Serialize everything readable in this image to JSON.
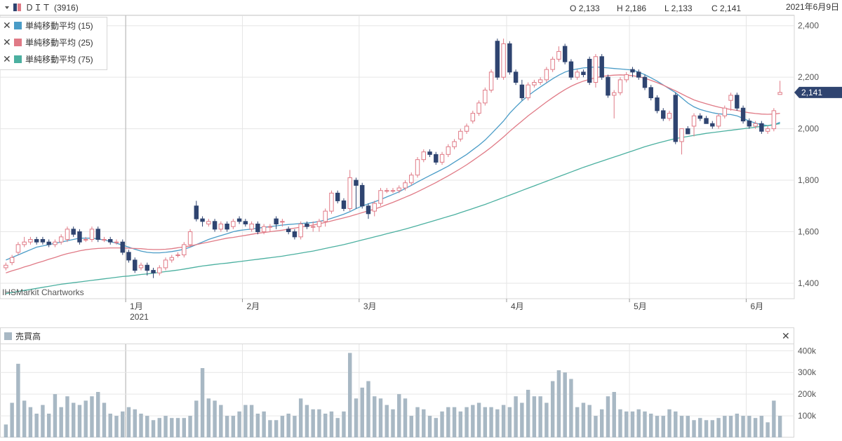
{
  "header": {
    "symbol_name": "ＤＩＴ",
    "code": "(3916)",
    "ohlc": [
      {
        "label": "O",
        "value": "2,133"
      },
      {
        "label": "H",
        "value": "2,186"
      },
      {
        "label": "L",
        "value": "2,133"
      },
      {
        "label": "C",
        "value": "2,141"
      }
    ],
    "date": "2021年6月9日"
  },
  "legend": [
    {
      "close": "✕",
      "label": "単純移動平均 (15)",
      "color": "#4a9cc7"
    },
    {
      "close": "✕",
      "label": "単純移動平均 (25)",
      "color": "#e07a86"
    },
    {
      "close": "✕",
      "label": "単純移動平均 (75)",
      "color": "#4bb0a0"
    }
  ],
  "watermark": "IHSMarkit Chartworks",
  "volume_panel": {
    "title": "売買高",
    "close": "✕"
  },
  "colors": {
    "up": "#e07a86",
    "down": "#2f4470",
    "volume": "#a8b8c4",
    "grid": "#e6e6e6"
  },
  "chart_data": [
    {
      "type": "candlestick",
      "yticks": [
        "2,400",
        "2,200",
        "2,000",
        "1,800",
        "1,600",
        "1,400"
      ],
      "ytick_values": [
        2400,
        2200,
        2000,
        1800,
        1600,
        1400
      ],
      "ylim": [
        1340,
        2440
      ],
      "last_price_label": "2,141",
      "last_price": 2141,
      "xticks": [
        {
          "label": "1月",
          "sub": "2021",
          "index": 20
        },
        {
          "label": "2月",
          "index": 39
        },
        {
          "label": "3月",
          "index": 58
        },
        {
          "label": "4月",
          "index": 82
        },
        {
          "label": "5月",
          "index": 102
        },
        {
          "label": "6月",
          "index": 121
        }
      ],
      "n": 127,
      "close": [
        1470,
        1500,
        1550,
        1560,
        1570,
        1560,
        1560,
        1550,
        1560,
        1580,
        1610,
        1590,
        1560,
        1570,
        1610,
        1570,
        1570,
        1560,
        1560,
        1520,
        1490,
        1450,
        1470,
        1450,
        1440,
        1460,
        1490,
        1500,
        1510,
        1550,
        1600,
        1650,
        1640,
        1640,
        1610,
        1630,
        1610,
        1640,
        1640,
        1630,
        1630,
        1600,
        1620,
        1620,
        1630,
        1640,
        1600,
        1580,
        1630,
        1620,
        1620,
        1640,
        1680,
        1750,
        1720,
        1690,
        1810,
        1780,
        1700,
        1670,
        1710,
        1760,
        1760,
        1760,
        1770,
        1790,
        1820,
        1880,
        1910,
        1900,
        1870,
        1900,
        1930,
        1950,
        1990,
        2010,
        2060,
        2100,
        2150,
        2220,
        2200,
        2330,
        2220,
        2180,
        2120,
        2170,
        2180,
        2190,
        2230,
        2270,
        2300,
        2260,
        2200,
        2220,
        2210,
        2180,
        2280,
        2200,
        2130,
        2140,
        2190,
        2210,
        2220,
        2200,
        2160,
        2120,
        2070,
        2040,
        2060,
        1950,
        2000,
        1980,
        2050,
        2040,
        2020,
        2010,
        2050,
        2080,
        2130,
        2080,
        2030,
        2010,
        2020,
        1990,
        2000,
        2070,
        2141
      ],
      "open": [
        1460,
        1480,
        1520,
        1550,
        1560,
        1570,
        1570,
        1560,
        1550,
        1560,
        1570,
        1610,
        1600,
        1570,
        1570,
        1610,
        1570,
        1570,
        1560,
        1560,
        1520,
        1490,
        1460,
        1470,
        1450,
        1440,
        1460,
        1490,
        1510,
        1510,
        1550,
        1700,
        1650,
        1630,
        1640,
        1610,
        1630,
        1620,
        1650,
        1640,
        1610,
        1630,
        1600,
        1620,
        1650,
        1640,
        1610,
        1600,
        1580,
        1630,
        1620,
        1620,
        1640,
        1680,
        1750,
        1720,
        1690,
        1800,
        1780,
        1700,
        1680,
        1710,
        1760,
        1760,
        1760,
        1770,
        1790,
        1820,
        1880,
        1910,
        1900,
        1870,
        1900,
        1930,
        1960,
        1990,
        2030,
        2060,
        2100,
        2150,
        2340,
        2200,
        2330,
        2220,
        2170,
        2120,
        2170,
        2180,
        2190,
        2230,
        2270,
        2320,
        2260,
        2200,
        2220,
        2270,
        2180,
        2280,
        2200,
        2130,
        2140,
        2190,
        2230,
        2220,
        2200,
        2160,
        2120,
        2070,
        2040,
        2130,
        1950,
        2000,
        2010,
        2050,
        2040,
        2020,
        2010,
        2050,
        2110,
        2130,
        2080,
        2030,
        2010,
        2020,
        1990,
        2000,
        2133
      ],
      "high": [
        1480,
        1510,
        1560,
        1580,
        1580,
        1580,
        1580,
        1570,
        1570,
        1590,
        1620,
        1620,
        1610,
        1580,
        1620,
        1620,
        1580,
        1580,
        1570,
        1570,
        1530,
        1500,
        1480,
        1480,
        1460,
        1470,
        1500,
        1510,
        1520,
        1560,
        1610,
        1720,
        1660,
        1650,
        1650,
        1640,
        1640,
        1650,
        1660,
        1650,
        1640,
        1640,
        1630,
        1630,
        1660,
        1650,
        1620,
        1610,
        1640,
        1640,
        1640,
        1650,
        1690,
        1760,
        1760,
        1730,
        1840,
        1810,
        1790,
        1710,
        1720,
        1770,
        1770,
        1770,
        1780,
        1800,
        1830,
        1890,
        1920,
        1920,
        1910,
        1910,
        1940,
        1960,
        2000,
        2020,
        2070,
        2110,
        2160,
        2230,
        2350,
        2350,
        2340,
        2230,
        2190,
        2180,
        2190,
        2200,
        2240,
        2280,
        2320,
        2330,
        2270,
        2230,
        2230,
        2280,
        2290,
        2290,
        2210,
        2150,
        2200,
        2220,
        2240,
        2230,
        2210,
        2170,
        2130,
        2080,
        2070,
        2140,
        2000,
        2010,
        2060,
        2060,
        2050,
        2030,
        2060,
        2090,
        2140,
        2140,
        2090,
        2040,
        2030,
        2030,
        2010,
        2080,
        2186
      ],
      "low": [
        1450,
        1470,
        1510,
        1540,
        1550,
        1550,
        1550,
        1540,
        1540,
        1550,
        1560,
        1580,
        1550,
        1560,
        1560,
        1560,
        1560,
        1550,
        1550,
        1510,
        1480,
        1440,
        1450,
        1430,
        1420,
        1430,
        1450,
        1480,
        1500,
        1500,
        1540,
        1640,
        1620,
        1620,
        1600,
        1600,
        1600,
        1610,
        1630,
        1620,
        1600,
        1590,
        1590,
        1600,
        1610,
        1620,
        1590,
        1570,
        1570,
        1610,
        1600,
        1600,
        1620,
        1670,
        1710,
        1680,
        1680,
        1690,
        1690,
        1650,
        1660,
        1700,
        1750,
        1750,
        1750,
        1760,
        1780,
        1810,
        1870,
        1890,
        1860,
        1860,
        1890,
        1920,
        1950,
        1980,
        2020,
        2050,
        2090,
        2140,
        2190,
        2190,
        2210,
        2170,
        2110,
        2110,
        2160,
        2170,
        2180,
        2220,
        2260,
        2250,
        2190,
        2190,
        2200,
        2170,
        2160,
        2190,
        2120,
        2040,
        2130,
        2180,
        2200,
        2190,
        2150,
        2110,
        2060,
        2030,
        2030,
        1940,
        1900,
        1980,
        1970,
        2030,
        2020,
        2000,
        2000,
        2040,
        2070,
        2070,
        2020,
        2000,
        2000,
        1980,
        1980,
        1990,
        2133
      ],
      "series": [
        {
          "name": "単純移動平均 (15)",
          "values": [
            1490,
            1500,
            1510,
            1520,
            1530,
            1540,
            1545,
            1550,
            1555,
            1560,
            1565,
            1570,
            1575,
            1575,
            1575,
            1572,
            1568,
            1562,
            1555,
            1548,
            1540,
            1532,
            1525,
            1520,
            1518,
            1518,
            1520,
            1523,
            1527,
            1532,
            1540,
            1550,
            1560,
            1570,
            1578,
            1585,
            1592,
            1600,
            1605,
            1608,
            1610,
            1614,
            1617,
            1620,
            1623,
            1626,
            1628,
            1630,
            1632,
            1634,
            1636,
            1640,
            1645,
            1652,
            1660,
            1668,
            1678,
            1690,
            1700,
            1708,
            1716,
            1725,
            1735,
            1745,
            1755,
            1768,
            1780,
            1793,
            1806,
            1818,
            1830,
            1842,
            1855,
            1870,
            1885,
            1900,
            1918,
            1936,
            1956,
            1980,
            2005,
            2030,
            2060,
            2085,
            2108,
            2128,
            2146,
            2162,
            2178,
            2194,
            2208,
            2220,
            2228,
            2232,
            2236,
            2238,
            2240,
            2238,
            2236,
            2234,
            2232,
            2230,
            2228,
            2220,
            2210,
            2198,
            2185,
            2170,
            2155,
            2140,
            2120,
            2100,
            2085,
            2075,
            2068,
            2062,
            2058,
            2056,
            2055,
            2050,
            2040,
            2030,
            2022,
            2016,
            2012,
            2015,
            2025
          ]
        },
        {
          "name": "単純移動平均 (25)",
          "values": [
            1440,
            1448,
            1455,
            1463,
            1470,
            1478,
            1485,
            1493,
            1500,
            1508,
            1515,
            1520,
            1526,
            1530,
            1533,
            1535,
            1536,
            1537,
            1537,
            1537,
            1536,
            1535,
            1534,
            1532,
            1531,
            1531,
            1532,
            1534,
            1538,
            1541,
            1545,
            1550,
            1555,
            1560,
            1565,
            1570,
            1575,
            1578,
            1582,
            1586,
            1590,
            1594,
            1597,
            1600,
            1603,
            1606,
            1610,
            1614,
            1618,
            1622,
            1626,
            1631,
            1636,
            1642,
            1648,
            1654,
            1660,
            1667,
            1674,
            1681,
            1688,
            1696,
            1705,
            1714,
            1724,
            1734,
            1744,
            1755,
            1767,
            1779,
            1791,
            1804,
            1817,
            1831,
            1845,
            1860,
            1876,
            1893,
            1910,
            1928,
            1948,
            1968,
            1990,
            2010,
            2030,
            2050,
            2068,
            2086,
            2104,
            2121,
            2137,
            2152,
            2165,
            2176,
            2185,
            2192,
            2198,
            2203,
            2206,
            2208,
            2209,
            2208,
            2206,
            2202,
            2196,
            2188,
            2179,
            2169,
            2158,
            2147,
            2135,
            2123,
            2112,
            2104,
            2097,
            2090,
            2084,
            2079,
            2075,
            2071,
            2066,
            2062,
            2059,
            2057,
            2056,
            2057,
            2060
          ]
        },
        {
          "name": "単純移動平均 (75)",
          "values": [
            1360,
            1364,
            1368,
            1372,
            1376,
            1380,
            1384,
            1388,
            1392,
            1396,
            1399,
            1402,
            1405,
            1408,
            1411,
            1414,
            1417,
            1420,
            1423,
            1426,
            1428,
            1431,
            1434,
            1436,
            1439,
            1442,
            1445,
            1448,
            1451,
            1455,
            1459,
            1463,
            1467,
            1470,
            1473,
            1476,
            1478,
            1481,
            1484,
            1487,
            1490,
            1493,
            1496,
            1499,
            1502,
            1505,
            1509,
            1513,
            1517,
            1521,
            1525,
            1530,
            1535,
            1540,
            1545,
            1550,
            1556,
            1562,
            1568,
            1574,
            1580,
            1586,
            1592,
            1598,
            1604,
            1610,
            1617,
            1624,
            1631,
            1638,
            1645,
            1652,
            1659,
            1666,
            1674,
            1682,
            1690,
            1698,
            1706,
            1715,
            1724,
            1733,
            1742,
            1751,
            1760,
            1769,
            1778,
            1787,
            1796,
            1805,
            1814,
            1823,
            1832,
            1841,
            1850,
            1858,
            1866,
            1874,
            1882,
            1890,
            1898,
            1906,
            1914,
            1922,
            1930,
            1937,
            1944,
            1950,
            1956,
            1962,
            1966,
            1970,
            1974,
            1978,
            1982,
            1985,
            1988,
            1991,
            1994,
            1997,
            2000,
            2003,
            2006,
            2009,
            2012,
            2016,
            2020
          ]
        }
      ]
    },
    {
      "type": "bar",
      "title": "売買高",
      "yticks": [
        "400k",
        "300k",
        "200k",
        "100k"
      ],
      "ytick_values": [
        400000,
        300000,
        200000,
        100000
      ],
      "ylim": [
        0,
        430000
      ],
      "values": [
        60000,
        160000,
        340000,
        170000,
        140000,
        110000,
        150000,
        110000,
        200000,
        140000,
        190000,
        160000,
        150000,
        170000,
        190000,
        210000,
        160000,
        110000,
        100000,
        120000,
        140000,
        130000,
        110000,
        100000,
        80000,
        90000,
        100000,
        90000,
        90000,
        90000,
        100000,
        170000,
        320000,
        180000,
        170000,
        150000,
        100000,
        100000,
        120000,
        150000,
        150000,
        110000,
        120000,
        80000,
        80000,
        100000,
        110000,
        100000,
        180000,
        150000,
        130000,
        130000,
        110000,
        120000,
        90000,
        120000,
        390000,
        180000,
        230000,
        260000,
        190000,
        180000,
        150000,
        130000,
        200000,
        180000,
        100000,
        140000,
        130000,
        100000,
        90000,
        120000,
        140000,
        140000,
        120000,
        140000,
        150000,
        160000,
        140000,
        140000,
        130000,
        150000,
        140000,
        190000,
        160000,
        220000,
        190000,
        190000,
        160000,
        260000,
        310000,
        300000,
        270000,
        140000,
        160000,
        150000,
        100000,
        130000,
        190000,
        210000,
        130000,
        120000,
        120000,
        130000,
        120000,
        110000,
        100000,
        100000,
        130000,
        120000,
        100000,
        100000,
        80000,
        90000,
        80000,
        80000,
        90000,
        100000,
        100000,
        110000,
        100000,
        100000,
        90000,
        100000,
        70000,
        170000,
        100000
      ]
    }
  ]
}
